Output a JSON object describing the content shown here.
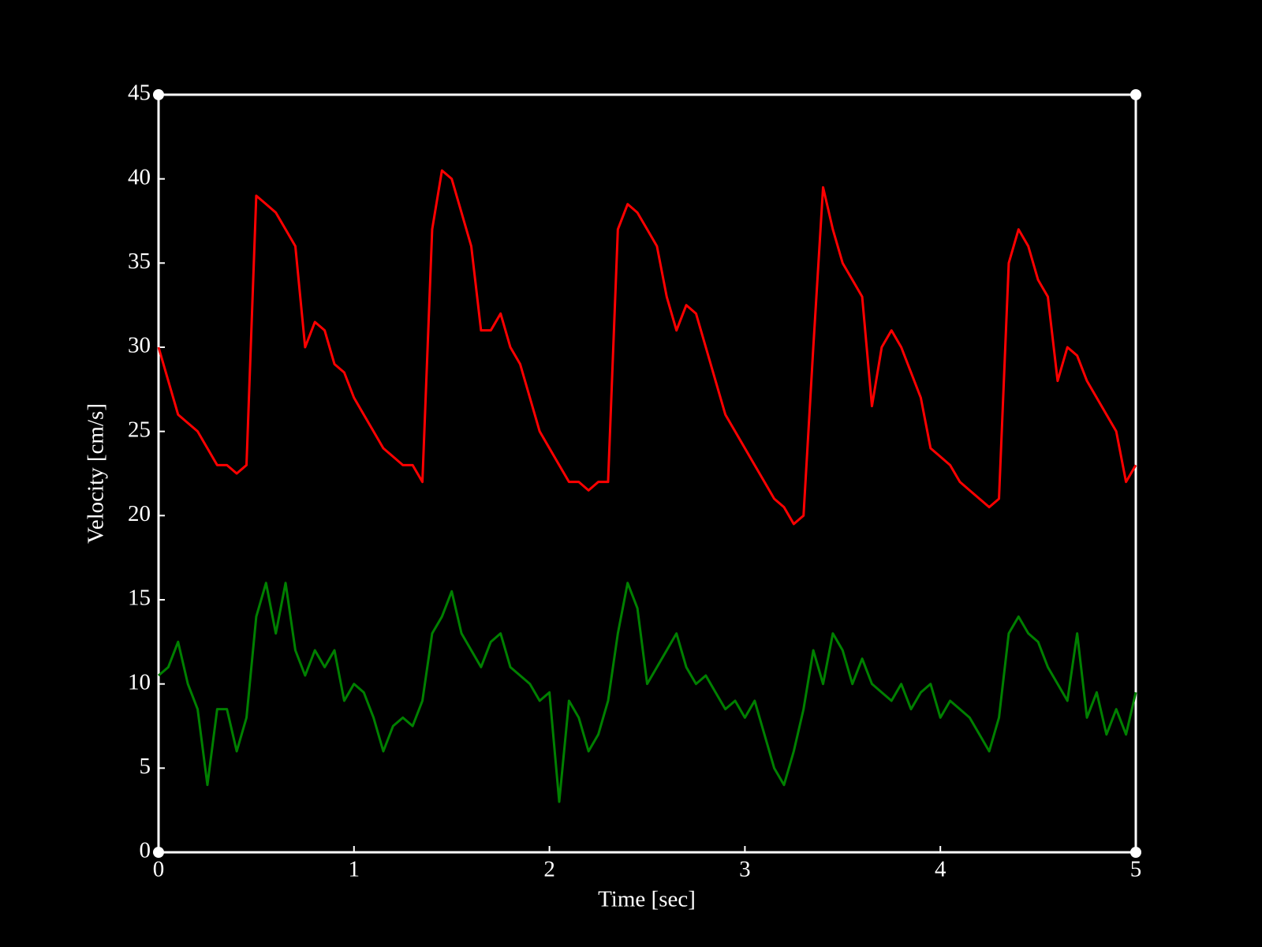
{
  "chart_data": {
    "type": "line",
    "xlabel": "Time [sec]",
    "ylabel": "Velocity [cm/s]",
    "x": [
      0,
      0.05,
      0.1,
      0.15,
      0.2,
      0.25,
      0.3,
      0.35,
      0.4,
      0.45,
      0.5,
      0.55,
      0.6,
      0.65,
      0.7,
      0.75,
      0.8,
      0.85,
      0.9,
      0.95,
      1,
      1.05,
      1.1,
      1.15,
      1.2,
      1.25,
      1.3,
      1.35,
      1.4,
      1.45,
      1.5,
      1.55,
      1.6,
      1.65,
      1.7,
      1.75,
      1.8,
      1.85,
      1.9,
      1.95,
      2,
      2.05,
      2.1,
      2.15,
      2.2,
      2.25,
      2.3,
      2.35,
      2.4,
      2.45,
      2.5,
      2.55,
      2.6,
      2.65,
      2.7,
      2.75,
      2.8,
      2.85,
      2.9,
      2.95,
      3,
      3.05,
      3.1,
      3.15,
      3.2,
      3.25,
      3.3,
      3.35,
      3.4,
      3.45,
      3.5,
      3.55,
      3.6,
      3.65,
      3.7,
      3.75,
      3.8,
      3.85,
      3.9,
      3.95,
      4,
      4.05,
      4.1,
      4.15,
      4.2,
      4.25,
      4.3,
      4.35,
      4.4,
      4.45,
      4.5,
      4.55,
      4.6,
      4.65,
      4.7,
      4.75,
      4.8,
      4.85,
      4.9,
      4.95,
      5
    ],
    "series": [
      {
        "color": "#ff0000",
        "values": [
          30,
          28,
          26,
          25.5,
          25,
          24,
          23,
          23,
          22.5,
          23,
          39,
          38.5,
          38,
          37,
          36,
          30,
          31.5,
          31,
          29,
          28.5,
          27,
          26,
          25,
          24,
          23.5,
          23,
          23,
          22,
          37,
          40.5,
          40,
          38,
          36,
          31,
          31,
          32,
          30,
          29,
          27,
          25,
          24,
          23,
          22,
          22,
          21.5,
          22,
          22,
          37,
          38.5,
          38,
          37,
          36,
          33,
          31,
          32.5,
          32,
          30,
          28,
          26,
          25,
          24,
          23,
          22,
          21,
          20.5,
          19.5,
          20,
          30,
          39.5,
          37,
          35,
          34,
          33,
          26.5,
          30,
          31,
          30,
          28.5,
          27,
          24,
          23.5,
          23,
          22,
          21.5,
          21,
          20.5,
          21,
          35,
          37,
          36,
          34,
          33,
          28,
          30,
          29.5,
          28,
          27,
          26,
          25,
          22,
          23
        ]
      },
      {
        "color": "#008000",
        "values": [
          10.5,
          11,
          12.5,
          10,
          8.5,
          4,
          8.5,
          8.5,
          6,
          8,
          14,
          16,
          13,
          16,
          12,
          10.5,
          12,
          11,
          12,
          9,
          10,
          9.5,
          8,
          6,
          7.5,
          8,
          7.5,
          9,
          13,
          14,
          15.5,
          13,
          12,
          11,
          12.5,
          13,
          11,
          10.5,
          10,
          9,
          9.5,
          3,
          9,
          8,
          6,
          7,
          9,
          13,
          16,
          14.5,
          10,
          11,
          12,
          13,
          11,
          10,
          10.5,
          9.5,
          8.5,
          9,
          8,
          9,
          7,
          5,
          4,
          6,
          8.5,
          12,
          10,
          13,
          12,
          10,
          11.5,
          10,
          9.5,
          9,
          10,
          8.5,
          9.5,
          10,
          8,
          9,
          8.5,
          8,
          7,
          6,
          8,
          13,
          14,
          13,
          12.5,
          11,
          10,
          9,
          13,
          8,
          9.5,
          7,
          8.5,
          7,
          9.5
        ]
      }
    ],
    "xlim": [
      0,
      5
    ],
    "xticks": [
      0,
      1,
      2,
      3,
      4,
      5
    ],
    "ylim": [
      0,
      45
    ],
    "yticks": [
      0,
      5,
      10,
      15,
      20,
      25,
      30,
      35,
      40,
      45
    ]
  }
}
